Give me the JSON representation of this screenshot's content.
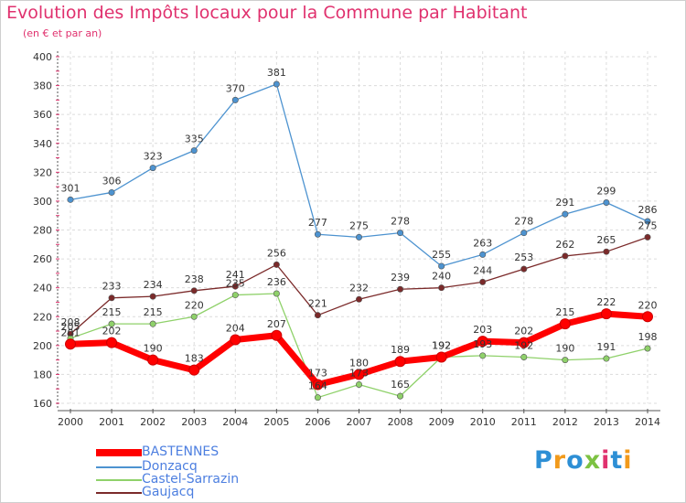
{
  "title": "Evolution des Impôts locaux pour la Commune par Habitant",
  "subtitle": "(en € et par an)",
  "logo": {
    "letters": [
      "P",
      "r",
      "o",
      "x",
      "i",
      "t",
      "i"
    ],
    "colors": [
      "#2d8fd5",
      "#f29a1b",
      "#2d8fd5",
      "#7dc242",
      "#e0316e",
      "#2d8fd5",
      "#f29a1b"
    ]
  },
  "chart_data": {
    "type": "line",
    "x": [
      "2000",
      "2001",
      "2002",
      "2003",
      "2004",
      "2005",
      "2006",
      "2007",
      "2008",
      "2009",
      "2010",
      "2011",
      "2012",
      "2013",
      "2014"
    ],
    "y_ticks": [
      160,
      180,
      200,
      220,
      240,
      260,
      280,
      300,
      320,
      340,
      360,
      380,
      400
    ],
    "ylim": [
      160,
      400
    ],
    "grid": true,
    "legend_position": "bottom-left",
    "series": [
      {
        "name": "BASTENNES",
        "color": "#ff0000",
        "values": [
          201,
          202,
          190,
          183,
          204,
          207,
          173,
          180,
          189,
          192,
          203,
          202,
          215,
          222,
          220
        ]
      },
      {
        "name": "Donzacq",
        "color": "#4d93d0",
        "values": [
          301,
          306,
          323,
          335,
          370,
          381,
          277,
          275,
          278,
          255,
          263,
          278,
          291,
          299,
          286
        ]
      },
      {
        "name": "Castel-Sarrazin",
        "color": "#8fd16a",
        "values": [
          205,
          215,
          215,
          220,
          235,
          236,
          164,
          173,
          165,
          192,
          193,
          192,
          190,
          191,
          198
        ]
      },
      {
        "name": "Gaujacq",
        "color": "#7b2a2a",
        "values": [
          208,
          233,
          234,
          238,
          241,
          256,
          221,
          232,
          239,
          240,
          244,
          253,
          262,
          265,
          275
        ]
      }
    ]
  }
}
